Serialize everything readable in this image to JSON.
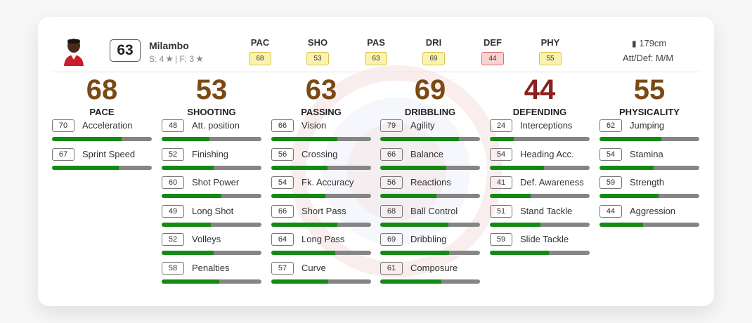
{
  "player": {
    "name": "Milambo",
    "rating": "63",
    "skills_text": "S: 4",
    "foot_text": "| F: 3",
    "height": "179cm",
    "work_rate": "Att/Def: M/M"
  },
  "summary": [
    {
      "label": "PAC",
      "value": "68",
      "color": "yellow"
    },
    {
      "label": "SHO",
      "value": "53",
      "color": "yellow"
    },
    {
      "label": "PAS",
      "value": "63",
      "color": "yellow"
    },
    {
      "label": "DRI",
      "value": "69",
      "color": "yellow"
    },
    {
      "label": "DEF",
      "value": "44",
      "color": "red"
    },
    {
      "label": "PHY",
      "value": "55",
      "color": "yellow"
    }
  ],
  "categories": [
    {
      "value": "68",
      "name": "PACE",
      "stats": [
        {
          "value": 70,
          "name": "Acceleration"
        },
        {
          "value": 67,
          "name": "Sprint Speed"
        }
      ]
    },
    {
      "value": "53",
      "name": "SHOOTING",
      "stats": [
        {
          "value": 48,
          "name": "Att. position"
        },
        {
          "value": 52,
          "name": "Finishing"
        },
        {
          "value": 60,
          "name": "Shot Power"
        },
        {
          "value": 49,
          "name": "Long Shot"
        },
        {
          "value": 52,
          "name": "Volleys"
        },
        {
          "value": 58,
          "name": "Penalties"
        }
      ]
    },
    {
      "value": "63",
      "name": "PASSING",
      "stats": [
        {
          "value": 66,
          "name": "Vision"
        },
        {
          "value": 56,
          "name": "Crossing"
        },
        {
          "value": 54,
          "name": "Fk. Accuracy"
        },
        {
          "value": 66,
          "name": "Short Pass"
        },
        {
          "value": 64,
          "name": "Long Pass"
        },
        {
          "value": 57,
          "name": "Curve"
        }
      ]
    },
    {
      "value": "69",
      "name": "DRIBBLING",
      "stats": [
        {
          "value": 79,
          "name": "Agility"
        },
        {
          "value": 66,
          "name": "Balance"
        },
        {
          "value": 56,
          "name": "Reactions"
        },
        {
          "value": 68,
          "name": "Ball Control"
        },
        {
          "value": 69,
          "name": "Dribbling"
        },
        {
          "value": 61,
          "name": "Composure"
        }
      ]
    },
    {
      "value": "44",
      "name": "DEFENDING",
      "color": "red",
      "stats": [
        {
          "value": 24,
          "name": "Interceptions"
        },
        {
          "value": 54,
          "name": "Heading Acc."
        },
        {
          "value": 41,
          "name": "Def. Awareness"
        },
        {
          "value": 51,
          "name": "Stand Tackle"
        },
        {
          "value": 59,
          "name": "Slide Tackle"
        }
      ]
    },
    {
      "value": "55",
      "name": "PHYSICALITY",
      "stats": [
        {
          "value": 62,
          "name": "Jumping"
        },
        {
          "value": 54,
          "name": "Stamina"
        },
        {
          "value": 59,
          "name": "Strength"
        },
        {
          "value": 44,
          "name": "Aggression"
        }
      ]
    }
  ]
}
